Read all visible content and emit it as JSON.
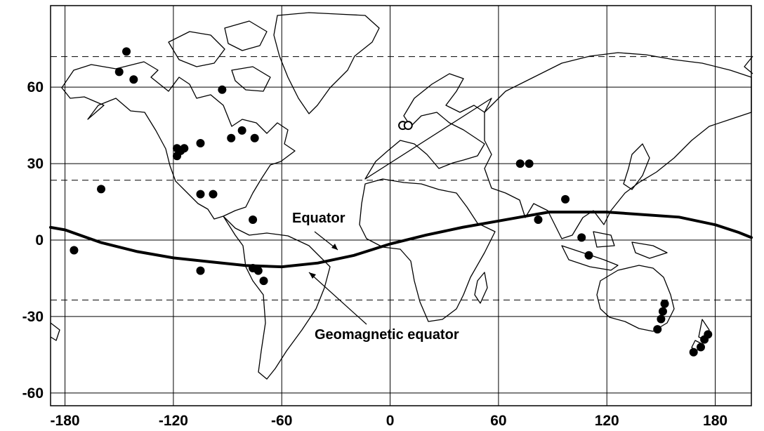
{
  "map": {
    "x_ticks": [
      "-180",
      "-120",
      "-60",
      "0",
      "60",
      "120",
      "180"
    ],
    "x_tick_values": [
      -180,
      -120,
      -60,
      0,
      60,
      120,
      180
    ],
    "y_ticks": [
      "60",
      "30",
      "0",
      "-30",
      "-60"
    ],
    "y_tick_values": [
      60,
      30,
      0,
      -30,
      -60
    ],
    "x_range": [
      -188,
      200
    ],
    "y_range": [
      -65,
      92
    ],
    "dashed_latitudes": [
      72,
      23.5,
      -23.5
    ],
    "annotations": {
      "equator_label": "Equator",
      "geomagnetic_label": "Geomagnetic equator"
    },
    "geomagnetic_equator": [
      [
        -188,
        5
      ],
      [
        -180,
        4
      ],
      [
        -160,
        -1
      ],
      [
        -140,
        -4.5
      ],
      [
        -120,
        -7
      ],
      [
        -100,
        -8.5
      ],
      [
        -80,
        -10
      ],
      [
        -60,
        -10.5
      ],
      [
        -40,
        -9
      ],
      [
        -20,
        -6
      ],
      [
        0,
        -1.5
      ],
      [
        20,
        2
      ],
      [
        40,
        5
      ],
      [
        60,
        7.5
      ],
      [
        80,
        10
      ],
      [
        88,
        11
      ],
      [
        100,
        11
      ],
      [
        120,
        11
      ],
      [
        140,
        10
      ],
      [
        160,
        9
      ],
      [
        180,
        6
      ],
      [
        193,
        3
      ],
      [
        200,
        1
      ]
    ],
    "filled_sites": [
      [
        -146,
        74
      ],
      [
        -150,
        66
      ],
      [
        -142,
        63
      ],
      [
        -93,
        59
      ],
      [
        -118,
        36
      ],
      [
        -116,
        35
      ],
      [
        -114,
        36
      ],
      [
        -118,
        33
      ],
      [
        -105,
        38
      ],
      [
        -88,
        40
      ],
      [
        -82,
        43
      ],
      [
        -75,
        40
      ],
      [
        -160,
        20
      ],
      [
        -175,
        -4
      ],
      [
        -105,
        18
      ],
      [
        -98,
        18
      ],
      [
        -76,
        8
      ],
      [
        -105,
        -12
      ],
      [
        -76,
        -11
      ],
      [
        -73,
        -12
      ],
      [
        -70,
        -16
      ],
      [
        72,
        30
      ],
      [
        77,
        30
      ],
      [
        82,
        8
      ],
      [
        97,
        16
      ],
      [
        106,
        1
      ],
      [
        110,
        -6
      ],
      [
        152,
        -25
      ],
      [
        151,
        -28
      ],
      [
        150,
        -31
      ],
      [
        148,
        -35
      ],
      [
        176,
        -37
      ],
      [
        174,
        -39
      ],
      [
        172,
        -42
      ],
      [
        168,
        -44
      ]
    ],
    "open_sites": [
      [
        7,
        45
      ],
      [
        10,
        45
      ]
    ],
    "colors": {
      "ink": "#000000",
      "background": "#ffffff"
    }
  }
}
